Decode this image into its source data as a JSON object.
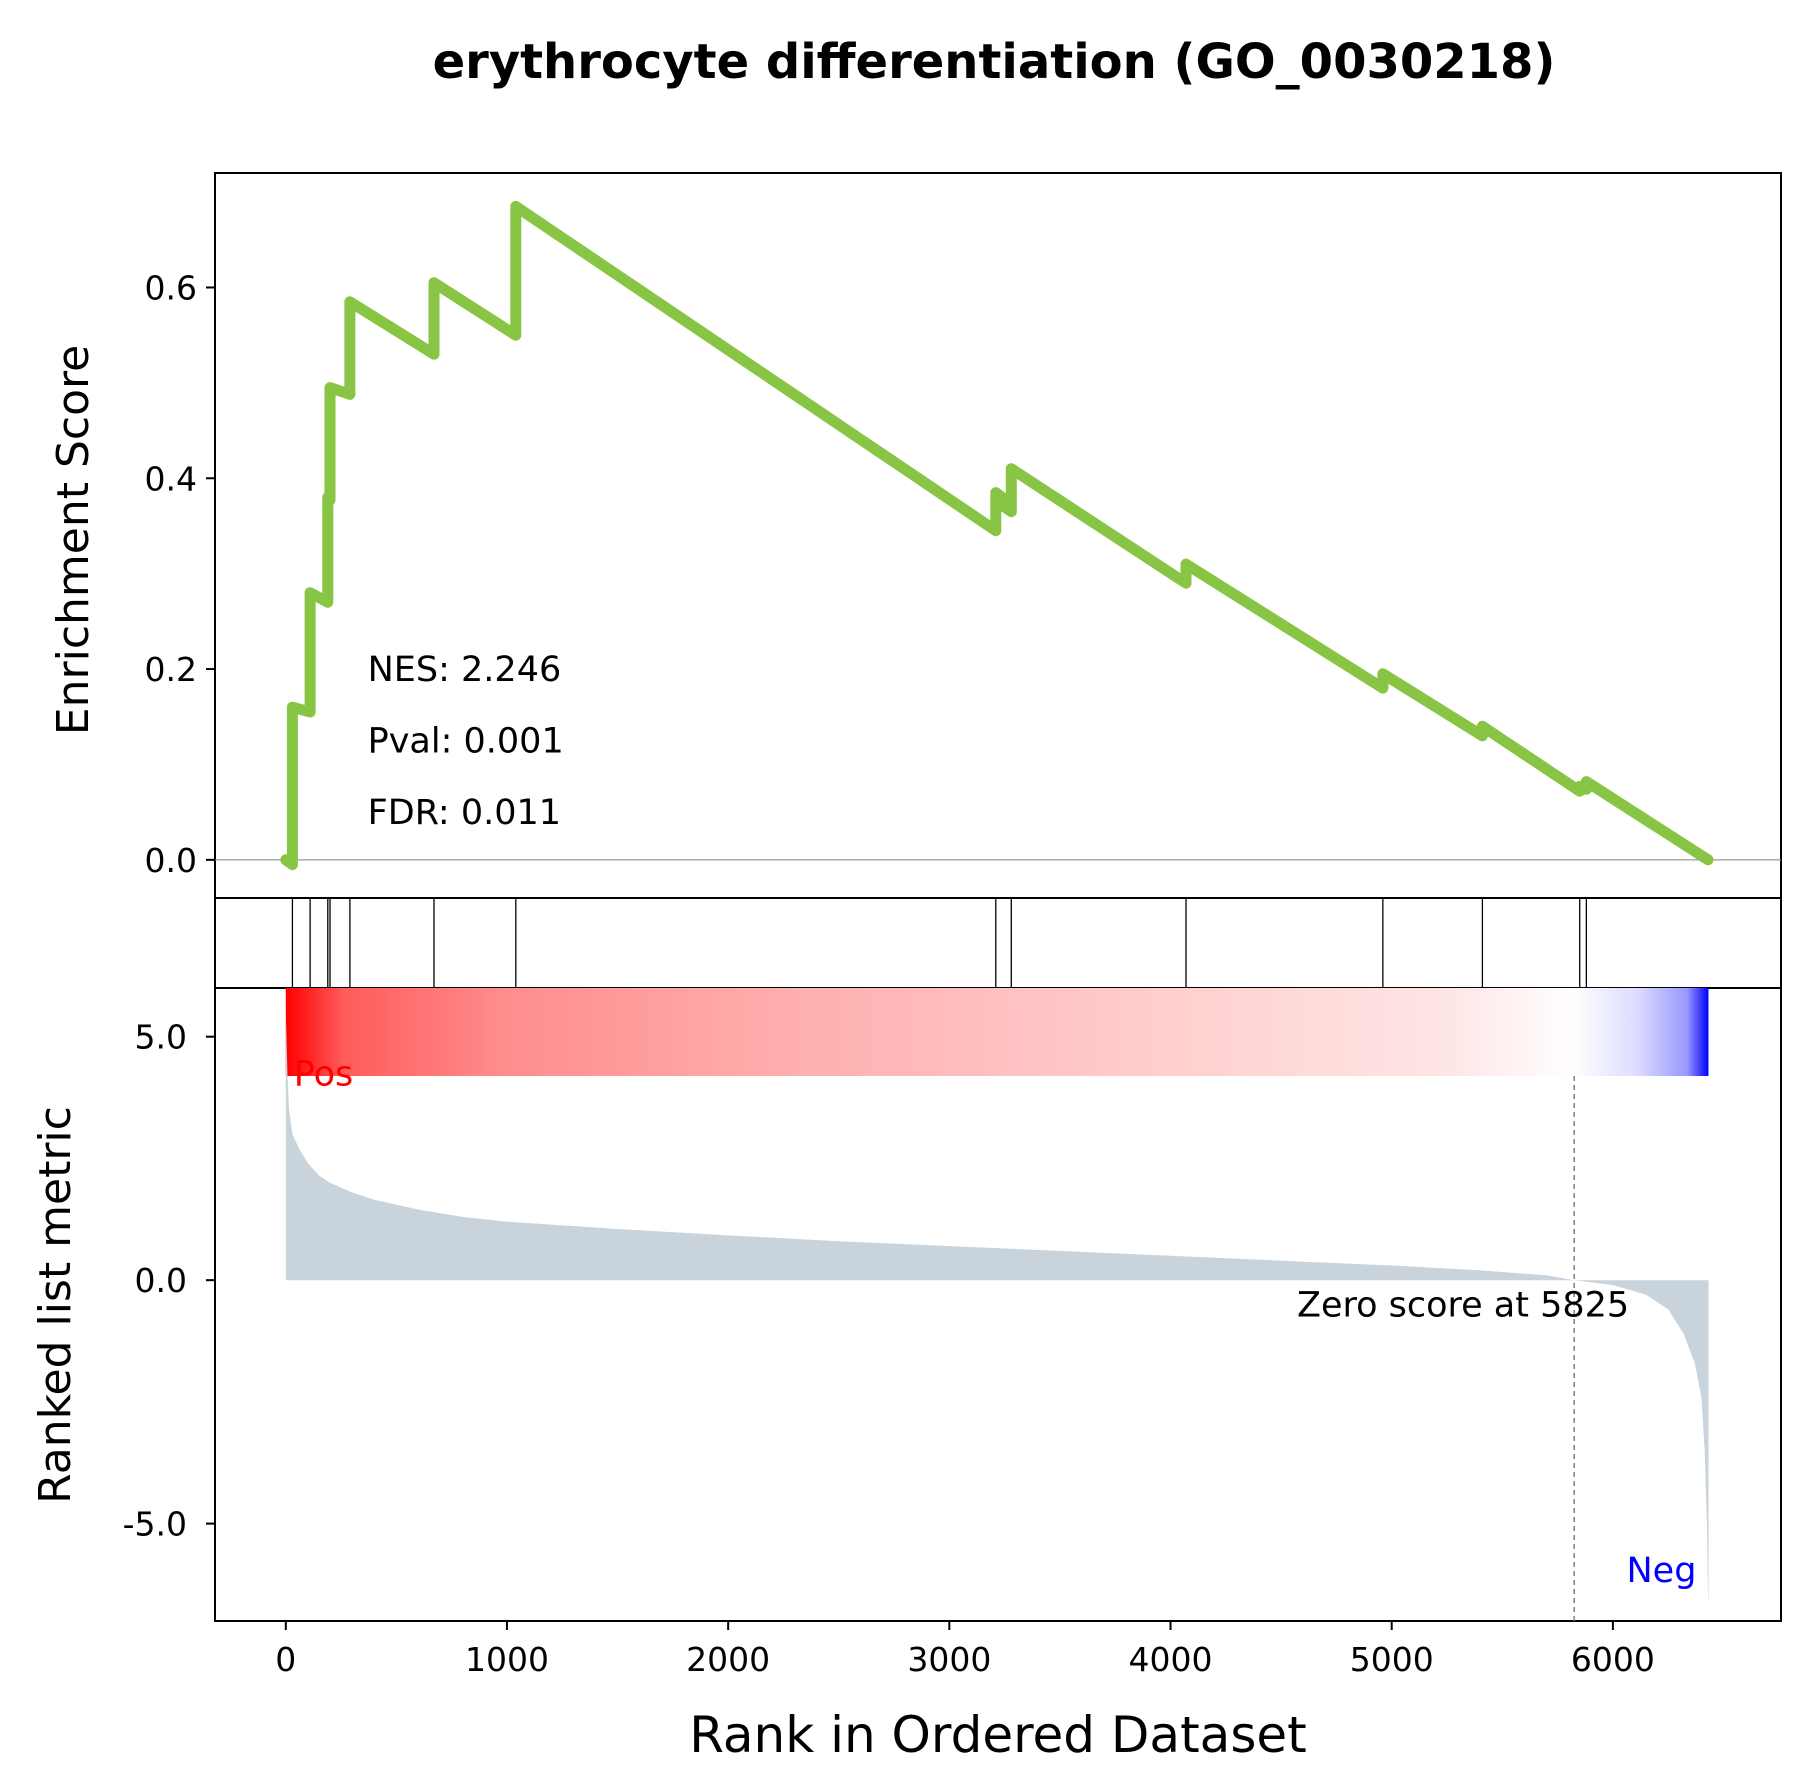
{
  "chart_data": {
    "type": "line",
    "title": "erythrocyte differentiation (GO_0030218)",
    "xlabel": "Rank in Ordered Dataset",
    "xlim": [
      -320,
      6760
    ],
    "xticks": [
      0,
      1000,
      2000,
      3000,
      4000,
      5000,
      6000
    ],
    "xtick_labels": [
      "0",
      "1000",
      "2000",
      "3000",
      "4000",
      "5000",
      "6000"
    ],
    "enrichment": {
      "ylabel": "Enrichment Score",
      "ylim": [
        -0.04,
        0.72
      ],
      "yticks": [
        0.0,
        0.2,
        0.4,
        0.6
      ],
      "ytick_labels": [
        "0.0",
        "0.2",
        "0.4",
        "0.6"
      ],
      "line_color": "#88c544",
      "x": [
        0,
        30,
        30,
        110,
        110,
        190,
        190,
        200,
        200,
        290,
        290,
        670,
        670,
        1040,
        1040,
        3210,
        3210,
        3250,
        3250,
        3280,
        3280,
        4070,
        4070,
        4960,
        4960,
        5410,
        5410,
        5850,
        5850,
        5880,
        5880,
        6430
      ],
      "y": [
        0.0,
        -0.005,
        0.16,
        0.155,
        0.28,
        0.27,
        0.38,
        0.377,
        0.495,
        0.488,
        0.585,
        0.53,
        0.605,
        0.55,
        0.685,
        0.345,
        0.385,
        0.378,
        0.37,
        0.365,
        0.41,
        0.29,
        0.31,
        0.18,
        0.195,
        0.13,
        0.14,
        0.072,
        0.077,
        0.074,
        0.082,
        0.0
      ],
      "annotations": [
        {
          "label": "NES: 2.246",
          "x": 370,
          "y": 0.2
        },
        {
          "label": "Pval: 0.001",
          "x": 370,
          "y": 0.125
        },
        {
          "label": "FDR: 0.011",
          "x": 370,
          "y": 0.05
        }
      ]
    },
    "hits": [
      30,
      110,
      190,
      200,
      290,
      670,
      1040,
      3210,
      3280,
      4070,
      4960,
      5410,
      5850,
      5880
    ],
    "ranked_metric": {
      "ylabel": "Ranked list metric",
      "ylim": [
        -7.0,
        6.0
      ],
      "yticks": [
        5.0,
        0.0,
        -5.0
      ],
      "ytick_labels": [
        "5.0",
        "0.0",
        "-5.0"
      ],
      "fill_color": "#c8d3dc",
      "x": [
        0,
        8,
        15,
        30,
        60,
        100,
        150,
        200,
        300,
        400,
        600,
        800,
        1000,
        1500,
        2000,
        2500,
        3000,
        3500,
        4000,
        4500,
        5000,
        5400,
        5700,
        5825,
        6000,
        6150,
        6250,
        6320,
        6370,
        6400,
        6415,
        6425,
        6430,
        6432
      ],
      "values": [
        5.5,
        4.2,
        3.5,
        3.0,
        2.7,
        2.4,
        2.15,
        2.0,
        1.8,
        1.65,
        1.45,
        1.3,
        1.2,
        1.05,
        0.92,
        0.8,
        0.7,
        0.6,
        0.5,
        0.4,
        0.3,
        0.2,
        0.1,
        0.0,
        -0.1,
        -0.3,
        -0.6,
        -1.1,
        -1.7,
        -2.4,
        -3.5,
        -5.0,
        -6.5,
        -6.6
      ],
      "zero_cross": 5825,
      "zero_label": "Zero score at 5825",
      "pos_label": "Pos",
      "neg_label": "Neg",
      "pos_color": "#ff0000",
      "neg_color": "#0000ff"
    },
    "colorbar": {
      "start": 0,
      "end": 6432,
      "zero": 5825
    },
    "grid": false
  }
}
